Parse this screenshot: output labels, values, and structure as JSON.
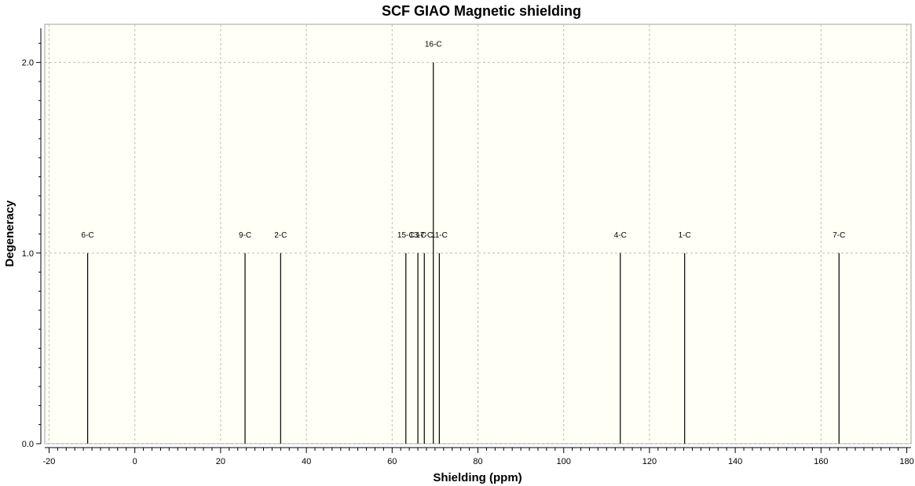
{
  "chart_data": {
    "type": "bar",
    "title": "SCF GIAO Magnetic shielding",
    "xlabel": "Shielding (ppm)",
    "ylabel": "Degeneracy",
    "xlim": [
      -21,
      181
    ],
    "ylim": [
      0,
      2.2
    ],
    "x_ticks": [
      -20,
      0,
      20,
      40,
      60,
      80,
      100,
      120,
      140,
      160,
      180
    ],
    "y_ticks": [
      0.0,
      1.0,
      2.0
    ],
    "y_tick_labels": [
      "0.0",
      "1.0",
      "2.0"
    ],
    "grid": true,
    "background": "#fffff5",
    "grid_color": "#bdbdbd",
    "peaks": [
      {
        "label": "6-C",
        "x": -11.0,
        "y": 1
      },
      {
        "label": "9-C",
        "x": 25.7,
        "y": 1
      },
      {
        "label": "2-C",
        "x": 34.0,
        "y": 1
      },
      {
        "label": "15-C",
        "x": 63.2,
        "y": 1
      },
      {
        "label": "13-C",
        "x": 66.0,
        "y": 1
      },
      {
        "label": "17-C",
        "x": 67.5,
        "y": 1
      },
      {
        "label": "16-C",
        "x": 69.6,
        "y": 2
      },
      {
        "label": "11-C",
        "x": 71.0,
        "y": 1
      },
      {
        "label": "4-C",
        "x": 113.2,
        "y": 1
      },
      {
        "label": "1-C",
        "x": 128.2,
        "y": 1
      },
      {
        "label": "7-C",
        "x": 164.2,
        "y": 1
      }
    ]
  }
}
